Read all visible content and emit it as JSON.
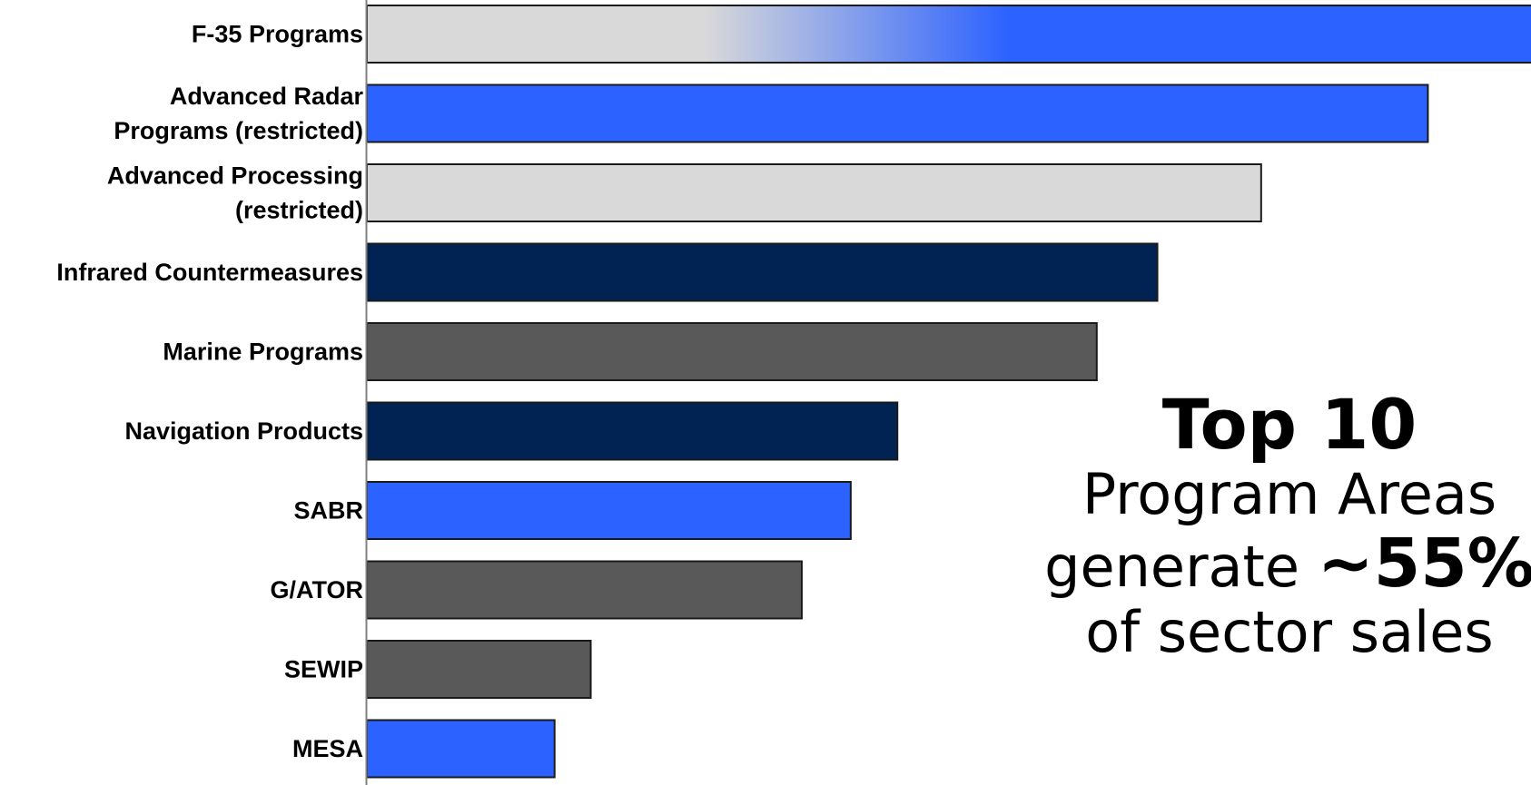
{
  "chart_data": {
    "type": "bar",
    "orientation": "horizontal",
    "categories": [
      [
        "F-35 Programs"
      ],
      [
        "Advanced Radar",
        "Programs (restricted)"
      ],
      [
        "Advanced Processing",
        "(restricted)"
      ],
      [
        "Infrared Countermeasures"
      ],
      [
        "Marine Programs"
      ],
      [
        "Navigation Products"
      ],
      [
        "SABR"
      ],
      [
        "G/ATOR"
      ],
      [
        "SEWIP"
      ],
      [
        "MESA"
      ]
    ],
    "values": [
      100,
      91,
      76.7,
      67.8,
      62.6,
      45.5,
      41.5,
      37.3,
      19.2,
      16.1
    ],
    "fills": [
      "gradient",
      "#2c62ff",
      "#d9d9d9",
      "#002353",
      "#595959",
      "#002353",
      "#2c62ff",
      "#595959",
      "#595959",
      "#2c62ff"
    ],
    "gradient_stops": [
      "#d9d9d9",
      "#2c62ff"
    ],
    "title": "",
    "xlabel": "",
    "ylabel": "",
    "axis_ticks": "none",
    "grid": false,
    "legend": "none"
  },
  "callout": {
    "line1": "Top 10",
    "line2": "Program Areas",
    "line3_prefix": "generate ",
    "line3_value": "~55%",
    "line4": "of sector sales"
  }
}
